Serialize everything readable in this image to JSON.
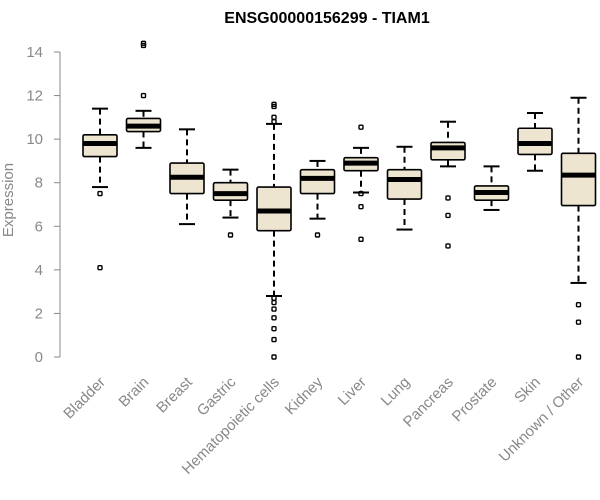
{
  "chart_data": {
    "type": "boxplot",
    "title": "ENSG00000156299 - TIAM1",
    "xlabel": "",
    "ylabel": "Expression",
    "ylim": [
      0,
      14
    ],
    "yticks": [
      0,
      2,
      4,
      6,
      8,
      10,
      12,
      14
    ],
    "box_color": "#ede5cf",
    "series": [
      {
        "name": "Bladder",
        "min": 7.8,
        "q1": 9.2,
        "median": 9.8,
        "q3": 10.2,
        "max": 11.4,
        "outliers": [
          7.5,
          4.1
        ]
      },
      {
        "name": "Brain",
        "min": 9.6,
        "q1": 10.35,
        "median": 10.6,
        "q3": 10.95,
        "max": 11.3,
        "outliers": [
          12.0,
          14.3,
          14.4
        ]
      },
      {
        "name": "Breast",
        "min": 6.1,
        "q1": 7.5,
        "median": 8.25,
        "q3": 8.9,
        "max": 10.45,
        "outliers": []
      },
      {
        "name": "Gastric",
        "min": 6.4,
        "q1": 7.2,
        "median": 7.5,
        "q3": 8.0,
        "max": 8.6,
        "outliers": [
          5.6
        ]
      },
      {
        "name": "Hematopoietic cells",
        "min": 2.8,
        "q1": 5.8,
        "median": 6.7,
        "q3": 7.8,
        "max": 10.7,
        "outliers": [
          0.0,
          0.8,
          1.3,
          1.8,
          2.2,
          2.5,
          2.7,
          10.8,
          11.0,
          11.5,
          11.6
        ]
      },
      {
        "name": "Kidney",
        "min": 6.35,
        "q1": 7.5,
        "median": 8.2,
        "q3": 8.6,
        "max": 9.0,
        "outliers": [
          5.6
        ]
      },
      {
        "name": "Liver",
        "min": 7.55,
        "q1": 8.55,
        "median": 8.9,
        "q3": 9.15,
        "max": 9.6,
        "outliers": [
          10.55,
          7.5,
          6.9,
          5.4
        ]
      },
      {
        "name": "Lung",
        "min": 5.85,
        "q1": 7.25,
        "median": 8.15,
        "q3": 8.6,
        "max": 9.65,
        "outliers": []
      },
      {
        "name": "Pancreas",
        "min": 8.75,
        "q1": 9.05,
        "median": 9.6,
        "q3": 9.85,
        "max": 10.8,
        "outliers": [
          7.3,
          6.5,
          5.1
        ]
      },
      {
        "name": "Prostate",
        "min": 6.75,
        "q1": 7.2,
        "median": 7.55,
        "q3": 7.85,
        "max": 8.75,
        "outliers": []
      },
      {
        "name": "Skin",
        "min": 8.55,
        "q1": 9.3,
        "median": 9.8,
        "q3": 10.5,
        "max": 11.2,
        "outliers": []
      },
      {
        "name": "Unknown / Other",
        "min": 3.4,
        "q1": 6.95,
        "median": 8.35,
        "q3": 9.35,
        "max": 11.9,
        "outliers": [
          2.4,
          1.6,
          0.0
        ]
      }
    ]
  }
}
